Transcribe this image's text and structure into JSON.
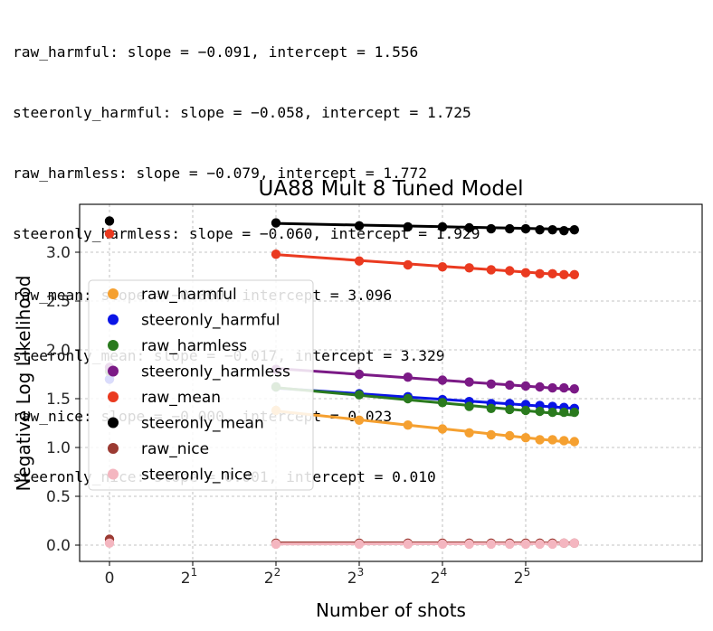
{
  "output_lines": [
    "raw_harmful: slope = −0.091, intercept = 1.556",
    "steeronly_harmful: slope = −0.058, intercept = 1.725",
    "raw_harmless: slope = −0.079, intercept = 1.772",
    "steeronly_harmless: slope = −0.060, intercept = 1.929",
    "raw_mean: slope = −0.060, intercept = 3.096",
    "steeronly_mean: slope = −0.017, intercept = 3.329",
    "raw_nice: slope = −0.000, intercept = 0.023",
    "steeronly_nice: slope = 0.001, intercept = 0.010"
  ],
  "chart_data": {
    "type": "scatter",
    "title": "UA88 Mult 8 Tuned Model",
    "xlabel": "Number of shots",
    "ylabel": "Negative Log Likelihood",
    "x_scale": "symlog base 2",
    "xlim": [
      -0.15,
      64
    ],
    "ylim": [
      -0.15,
      3.42
    ],
    "grid": true,
    "legend_position": "center-left",
    "x_ticks": [
      {
        "value": 0,
        "label": "0"
      },
      {
        "value": 2,
        "base": "2",
        "exp": "1"
      },
      {
        "value": 4,
        "base": "2",
        "exp": "2"
      },
      {
        "value": 8,
        "base": "2",
        "exp": "3"
      },
      {
        "value": 16,
        "base": "2",
        "exp": "4"
      },
      {
        "value": 32,
        "base": "2",
        "exp": "5"
      }
    ],
    "y_ticks": [
      0.0,
      0.5,
      1.0,
      1.5,
      2.0,
      2.5,
      3.0
    ],
    "y_tick_labels": [
      "0.0",
      "0.5",
      "1.0",
      "1.5",
      "2.0",
      "2.5",
      "3.0"
    ],
    "x": [
      0,
      4,
      8,
      12,
      16,
      20,
      24,
      28,
      32,
      36,
      40,
      44,
      48
    ],
    "series": [
      {
        "name": "raw_harmful",
        "color": "#f5a030",
        "values": [
          1.7,
          1.38,
          1.28,
          1.23,
          1.19,
          1.15,
          1.13,
          1.12,
          1.1,
          1.08,
          1.08,
          1.07,
          1.06
        ],
        "fit": {
          "slope": -0.091,
          "intercept": 1.556
        }
      },
      {
        "name": "steeronly_harmful",
        "color": "#0a14e6",
        "values": [
          1.7,
          1.62,
          1.55,
          1.52,
          1.49,
          1.47,
          1.45,
          1.45,
          1.44,
          1.43,
          1.42,
          1.41,
          1.4
        ],
        "fit": {
          "slope": -0.058,
          "intercept": 1.725
        }
      },
      {
        "name": "raw_harmless",
        "color": "#2a7a1e",
        "values": [
          1.78,
          1.62,
          1.54,
          1.5,
          1.46,
          1.42,
          1.4,
          1.39,
          1.38,
          1.37,
          1.36,
          1.36,
          1.36
        ],
        "fit": {
          "slope": -0.079,
          "intercept": 1.772
        }
      },
      {
        "name": "steeronly_harmless",
        "color": "#7b1a86",
        "values": [
          1.82,
          1.8,
          1.75,
          1.72,
          1.69,
          1.67,
          1.65,
          1.64,
          1.63,
          1.62,
          1.61,
          1.61,
          1.6
        ],
        "fit": {
          "slope": -0.06,
          "intercept": 1.929
        }
      },
      {
        "name": "raw_mean",
        "color": "#ea3a20",
        "values": [
          3.19,
          2.98,
          2.91,
          2.87,
          2.85,
          2.84,
          2.82,
          2.81,
          2.79,
          2.78,
          2.78,
          2.77,
          2.77
        ],
        "fit": {
          "slope": -0.06,
          "intercept": 3.096
        }
      },
      {
        "name": "steeronly_mean",
        "color": "#000000",
        "values": [
          3.32,
          3.3,
          3.27,
          3.26,
          3.26,
          3.25,
          3.24,
          3.24,
          3.24,
          3.23,
          3.23,
          3.22,
          3.23
        ],
        "fit": {
          "slope": -0.017,
          "intercept": 3.329
        }
      },
      {
        "name": "raw_nice",
        "color": "#9b3a32",
        "values": [
          0.06,
          0.02,
          0.02,
          0.02,
          0.02,
          0.02,
          0.02,
          0.02,
          0.02,
          0.02,
          0.02,
          0.02,
          0.02
        ],
        "fit": {
          "slope": -0.0,
          "intercept": 0.023
        }
      },
      {
        "name": "steeronly_nice",
        "color": "#f4b6c0",
        "values": [
          0.02,
          0.01,
          0.01,
          0.01,
          0.01,
          0.01,
          0.01,
          0.01,
          0.01,
          0.01,
          0.01,
          0.02,
          0.02
        ],
        "fit": {
          "slope": 0.001,
          "intercept": 0.01
        }
      }
    ]
  }
}
